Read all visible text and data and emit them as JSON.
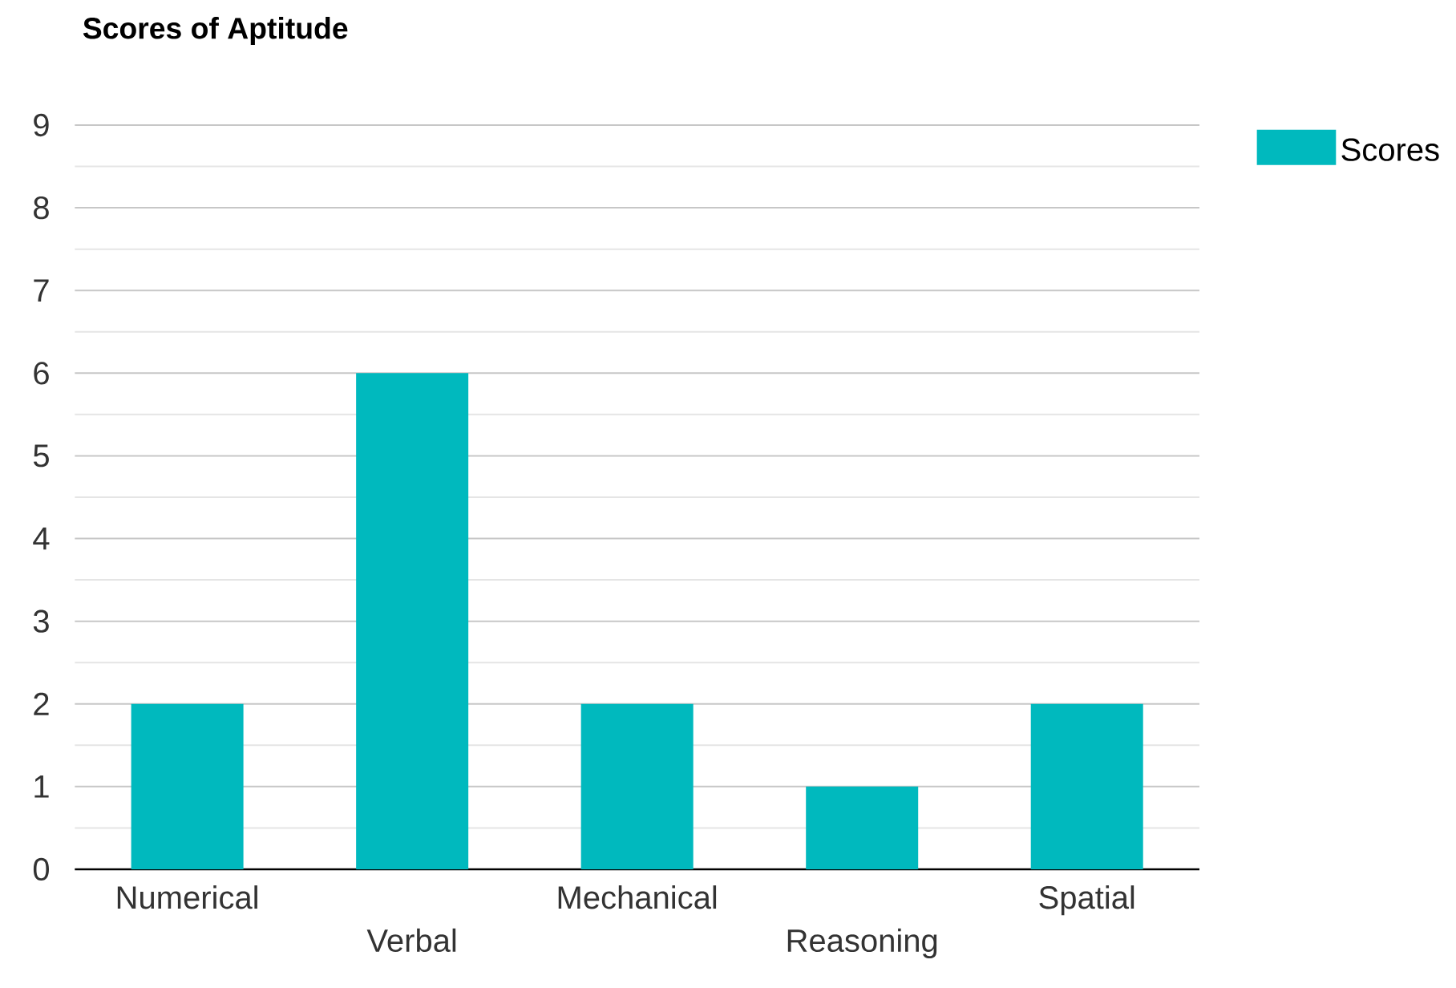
{
  "chart_data": {
    "type": "bar",
    "title": "Scores of Aptitude",
    "categories": [
      "Numerical",
      "Verbal",
      "Mechanical",
      "Reasoning",
      "Spatial"
    ],
    "series": [
      {
        "name": "Scores",
        "color": "#00b9be",
        "values": [
          2,
          6,
          2,
          1,
          2
        ]
      }
    ],
    "ylim": [
      0,
      9
    ],
    "yticks": [
      0,
      {
        "value": 0.5,
        "label": null
      },
      1,
      {
        "value": 1.5,
        "label": null
      },
      2,
      {
        "value": 2.5,
        "label": null
      },
      3,
      {
        "value": 3.5,
        "label": null
      },
      4,
      {
        "value": 4.5,
        "label": null
      },
      5,
      {
        "value": 5.5,
        "label": null
      },
      6,
      {
        "value": 6.5,
        "label": null
      },
      7,
      {
        "value": 7.5,
        "label": null
      },
      8,
      {
        "value": 8.5,
        "label": null
      },
      9
    ],
    "grid": "y",
    "legend": "top right"
  }
}
